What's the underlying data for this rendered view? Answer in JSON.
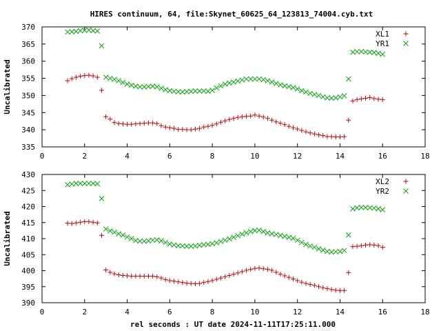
{
  "chart_data": [
    {
      "type": "scatter",
      "title": "HIRES continuum, 64, file:Skynet_60625_64_123813_74004.cyb.txt",
      "ylabel": "Uncalibrated",
      "xlabel": "",
      "xlim": [
        0,
        18
      ],
      "ylim": [
        335,
        370
      ],
      "xticks": [
        "0",
        "2",
        "4",
        "6",
        "8",
        "10",
        "12",
        "14",
        "16",
        "18"
      ],
      "yticks": [
        "335",
        "340",
        "345",
        "350",
        "355",
        "360",
        "365",
        "370"
      ],
      "legend": "top-right",
      "grid": false,
      "series": [
        {
          "name": "XL1",
          "color": "#cc0000",
          "marker": "plus",
          "x": [
            1.2,
            1.4,
            1.6,
            1.8,
            2.0,
            2.2,
            2.4,
            2.6,
            2.8,
            3.0,
            3.2,
            3.4,
            3.6,
            3.8,
            4.0,
            4.2,
            4.4,
            4.6,
            4.8,
            5.0,
            5.2,
            5.4,
            5.6,
            5.8,
            6.0,
            6.2,
            6.4,
            6.6,
            6.8,
            7.0,
            7.2,
            7.4,
            7.6,
            7.8,
            8.0,
            8.2,
            8.4,
            8.6,
            8.8,
            9.0,
            9.2,
            9.4,
            9.6,
            9.8,
            10.0,
            10.2,
            10.4,
            10.6,
            10.8,
            11.0,
            11.2,
            11.4,
            11.6,
            11.8,
            12.0,
            12.2,
            12.4,
            12.6,
            12.8,
            13.0,
            13.2,
            13.4,
            13.6,
            13.8,
            14.0,
            14.2,
            14.4,
            14.6,
            14.8,
            15.0,
            15.2,
            15.4,
            15.6,
            15.8,
            16.0
          ],
          "y": [
            354.3,
            354.9,
            355.3,
            355.6,
            355.8,
            355.9,
            355.7,
            355.3,
            351.5,
            343.8,
            343.1,
            342.1,
            341.8,
            341.7,
            341.6,
            341.6,
            341.7,
            341.8,
            341.9,
            342.0,
            342.0,
            341.8,
            341.2,
            340.8,
            340.6,
            340.4,
            340.1,
            340.1,
            340.0,
            340.0,
            340.2,
            340.4,
            340.8,
            341.0,
            341.3,
            341.7,
            342.2,
            342.6,
            343.0,
            343.3,
            343.6,
            343.8,
            343.9,
            344.0,
            344.3,
            344.0,
            343.7,
            343.3,
            342.8,
            342.3,
            341.9,
            341.5,
            341.0,
            340.6,
            340.2,
            339.8,
            339.4,
            339.1,
            338.8,
            338.5,
            338.3,
            338.0,
            338.0,
            337.9,
            337.9,
            338.0,
            342.8,
            348.4,
            348.8,
            349.0,
            349.2,
            349.4,
            349.1,
            348.9,
            348.8
          ]
        },
        {
          "name": "YR1",
          "color": "#00aa00",
          "marker": "cross",
          "x": [
            1.2,
            1.4,
            1.6,
            1.8,
            2.0,
            2.2,
            2.4,
            2.6,
            2.8,
            3.0,
            3.2,
            3.4,
            3.6,
            3.8,
            4.0,
            4.2,
            4.4,
            4.6,
            4.8,
            5.0,
            5.2,
            5.4,
            5.6,
            5.8,
            6.0,
            6.2,
            6.4,
            6.6,
            6.8,
            7.0,
            7.2,
            7.4,
            7.6,
            7.8,
            8.0,
            8.2,
            8.4,
            8.6,
            8.8,
            9.0,
            9.2,
            9.4,
            9.6,
            9.8,
            10.0,
            10.2,
            10.4,
            10.6,
            10.8,
            11.0,
            11.2,
            11.4,
            11.6,
            11.8,
            12.0,
            12.2,
            12.4,
            12.6,
            12.8,
            13.0,
            13.2,
            13.4,
            13.6,
            13.8,
            14.0,
            14.2,
            14.4,
            14.6,
            14.8,
            15.0,
            15.2,
            15.4,
            15.6,
            15.8,
            16.0
          ],
          "y": [
            368.5,
            368.6,
            368.7,
            368.9,
            369.0,
            369.1,
            368.9,
            368.8,
            364.5,
            355.3,
            355.0,
            354.7,
            354.3,
            353.8,
            353.3,
            353.0,
            352.7,
            352.5,
            352.5,
            352.6,
            352.7,
            352.5,
            352.1,
            351.7,
            351.4,
            351.2,
            351.1,
            351.0,
            351.1,
            351.2,
            351.3,
            351.3,
            351.3,
            351.2,
            351.5,
            352.2,
            352.8,
            353.3,
            353.6,
            353.9,
            354.2,
            354.5,
            354.8,
            354.8,
            354.8,
            354.8,
            354.6,
            354.3,
            353.9,
            353.5,
            353.1,
            352.8,
            352.6,
            352.3,
            351.9,
            351.4,
            351.0,
            350.6,
            350.3,
            350.0,
            349.6,
            349.3,
            349.2,
            349.3,
            349.6,
            349.9,
            354.8,
            362.6,
            362.8,
            362.8,
            362.7,
            362.6,
            362.5,
            362.3,
            362.0
          ]
        }
      ]
    },
    {
      "type": "scatter",
      "title": "",
      "ylabel": "Uncalibrated",
      "xlabel": "rel seconds : UT date 2024-11-11T17:25:11.000",
      "xlim": [
        0,
        18
      ],
      "ylim": [
        390,
        430
      ],
      "xticks": [
        "0",
        "2",
        "4",
        "6",
        "8",
        "10",
        "12",
        "14",
        "16",
        "18"
      ],
      "yticks": [
        "390",
        "395",
        "400",
        "405",
        "410",
        "415",
        "420",
        "425",
        "430"
      ],
      "legend": "top-right",
      "grid": false,
      "series": [
        {
          "name": "XL2",
          "color": "#cc0000",
          "marker": "plus",
          "x": [
            1.2,
            1.4,
            1.6,
            1.8,
            2.0,
            2.2,
            2.4,
            2.6,
            2.8,
            3.0,
            3.2,
            3.4,
            3.6,
            3.8,
            4.0,
            4.2,
            4.4,
            4.6,
            4.8,
            5.0,
            5.2,
            5.4,
            5.6,
            5.8,
            6.0,
            6.2,
            6.4,
            6.6,
            6.8,
            7.0,
            7.2,
            7.4,
            7.6,
            7.8,
            8.0,
            8.2,
            8.4,
            8.6,
            8.8,
            9.0,
            9.2,
            9.4,
            9.6,
            9.8,
            10.0,
            10.2,
            10.4,
            10.6,
            10.8,
            11.0,
            11.2,
            11.4,
            11.6,
            11.8,
            12.0,
            12.2,
            12.4,
            12.6,
            12.8,
            13.0,
            13.2,
            13.4,
            13.6,
            13.8,
            14.0,
            14.2,
            14.4,
            14.6,
            14.8,
            15.0,
            15.2,
            15.4,
            15.6,
            15.8,
            16.0
          ],
          "y": [
            414.8,
            414.7,
            414.9,
            415.1,
            415.3,
            415.3,
            415.1,
            414.9,
            411.0,
            400.2,
            399.5,
            399.0,
            398.7,
            398.5,
            398.4,
            398.3,
            398.3,
            398.3,
            398.3,
            398.3,
            398.3,
            398.1,
            397.7,
            397.2,
            396.9,
            396.7,
            396.5,
            396.3,
            396.1,
            396.0,
            395.9,
            396.0,
            396.3,
            396.6,
            396.9,
            397.3,
            397.7,
            398.1,
            398.5,
            398.9,
            399.3,
            399.7,
            400.1,
            400.4,
            400.7,
            400.8,
            400.6,
            400.4,
            400.1,
            399.5,
            398.9,
            398.4,
            397.9,
            397.4,
            396.9,
            396.4,
            396.0,
            395.7,
            395.4,
            395.0,
            394.7,
            394.4,
            394.1,
            393.9,
            393.8,
            393.8,
            399.4,
            407.5,
            407.6,
            407.8,
            408.0,
            408.1,
            408.0,
            407.8,
            407.3
          ]
        },
        {
          "name": "YR2",
          "color": "#00aa00",
          "marker": "cross",
          "x": [
            1.2,
            1.4,
            1.6,
            1.8,
            2.0,
            2.2,
            2.4,
            2.6,
            2.8,
            3.0,
            3.2,
            3.4,
            3.6,
            3.8,
            4.0,
            4.2,
            4.4,
            4.6,
            4.8,
            5.0,
            5.2,
            5.4,
            5.6,
            5.8,
            6.0,
            6.2,
            6.4,
            6.6,
            6.8,
            7.0,
            7.2,
            7.4,
            7.6,
            7.8,
            8.0,
            8.2,
            8.4,
            8.6,
            8.8,
            9.0,
            9.2,
            9.4,
            9.6,
            9.8,
            10.0,
            10.2,
            10.4,
            10.6,
            10.8,
            11.0,
            11.2,
            11.4,
            11.6,
            11.8,
            12.0,
            12.2,
            12.4,
            12.6,
            12.8,
            13.0,
            13.2,
            13.4,
            13.6,
            13.8,
            14.0,
            14.2,
            14.4,
            14.6,
            14.8,
            15.0,
            15.2,
            15.4,
            15.6,
            15.8,
            16.0
          ],
          "y": [
            426.8,
            427.0,
            427.2,
            427.2,
            427.2,
            427.2,
            427.2,
            427.1,
            422.5,
            413.0,
            412.4,
            412.0,
            411.5,
            411.1,
            410.5,
            410.0,
            409.4,
            409.2,
            409.2,
            409.3,
            409.5,
            409.6,
            409.3,
            408.8,
            408.3,
            408.0,
            407.8,
            407.7,
            407.6,
            407.6,
            407.7,
            407.9,
            408.1,
            408.2,
            408.4,
            408.7,
            409.1,
            409.5,
            409.9,
            410.4,
            410.9,
            411.4,
            411.8,
            412.2,
            412.5,
            412.6,
            412.2,
            411.8,
            411.5,
            411.3,
            411.0,
            410.7,
            410.4,
            410.1,
            409.5,
            408.8,
            408.2,
            407.7,
            407.3,
            406.8,
            406.4,
            406.0,
            405.8,
            405.9,
            406.0,
            406.3,
            411.1,
            419.3,
            419.6,
            419.7,
            419.7,
            419.6,
            419.5,
            419.3,
            419.0
          ]
        }
      ]
    }
  ]
}
